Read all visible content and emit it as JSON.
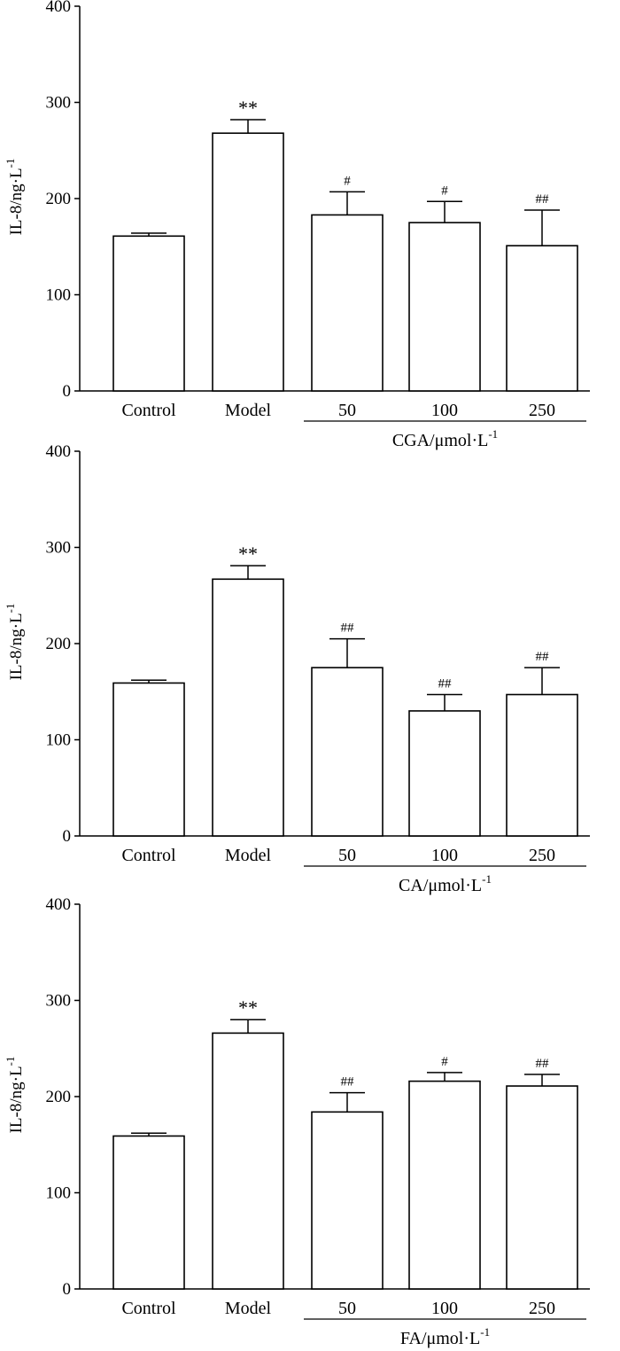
{
  "chart_data": [
    {
      "type": "bar",
      "ylabel": "IL-8/ng·L",
      "ylabel_sup": "-1",
      "ylim": [
        0,
        400
      ],
      "yticks": [
        0,
        100,
        200,
        300,
        400
      ],
      "categories": [
        "Control",
        "Model",
        "50",
        "100",
        "250"
      ],
      "group_label": "CGA/μmol·L",
      "group_label_sup": "-1",
      "values": [
        161,
        268,
        183,
        175,
        151
      ],
      "errors": [
        3,
        14,
        24,
        22,
        37
      ],
      "significance": [
        "",
        "**",
        "#",
        "#",
        "##"
      ],
      "grid": false,
      "legend": "none"
    },
    {
      "type": "bar",
      "ylabel": "IL-8/ng·L",
      "ylabel_sup": "-1",
      "ylim": [
        0,
        400
      ],
      "yticks": [
        0,
        100,
        200,
        300,
        400
      ],
      "categories": [
        "Control",
        "Model",
        "50",
        "100",
        "250"
      ],
      "group_label": "CA/μmol·L",
      "group_label_sup": "-1",
      "values": [
        159,
        267,
        175,
        130,
        147
      ],
      "errors": [
        3,
        14,
        30,
        17,
        28
      ],
      "significance": [
        "",
        "**",
        "##",
        "##",
        "##"
      ],
      "grid": false,
      "legend": "none"
    },
    {
      "type": "bar",
      "ylabel": "IL-8/ng·L",
      "ylabel_sup": "-1",
      "ylim": [
        0,
        400
      ],
      "yticks": [
        0,
        100,
        200,
        300,
        400
      ],
      "categories": [
        "Control",
        "Model",
        "50",
        "100",
        "250"
      ],
      "group_label": "FA/μmol·L",
      "group_label_sup": "-1",
      "values": [
        159,
        266,
        184,
        216,
        211
      ],
      "errors": [
        3,
        14,
        20,
        9,
        12
      ],
      "significance": [
        "",
        "**",
        "##",
        "#",
        "##"
      ],
      "grid": false,
      "legend": "none"
    }
  ]
}
